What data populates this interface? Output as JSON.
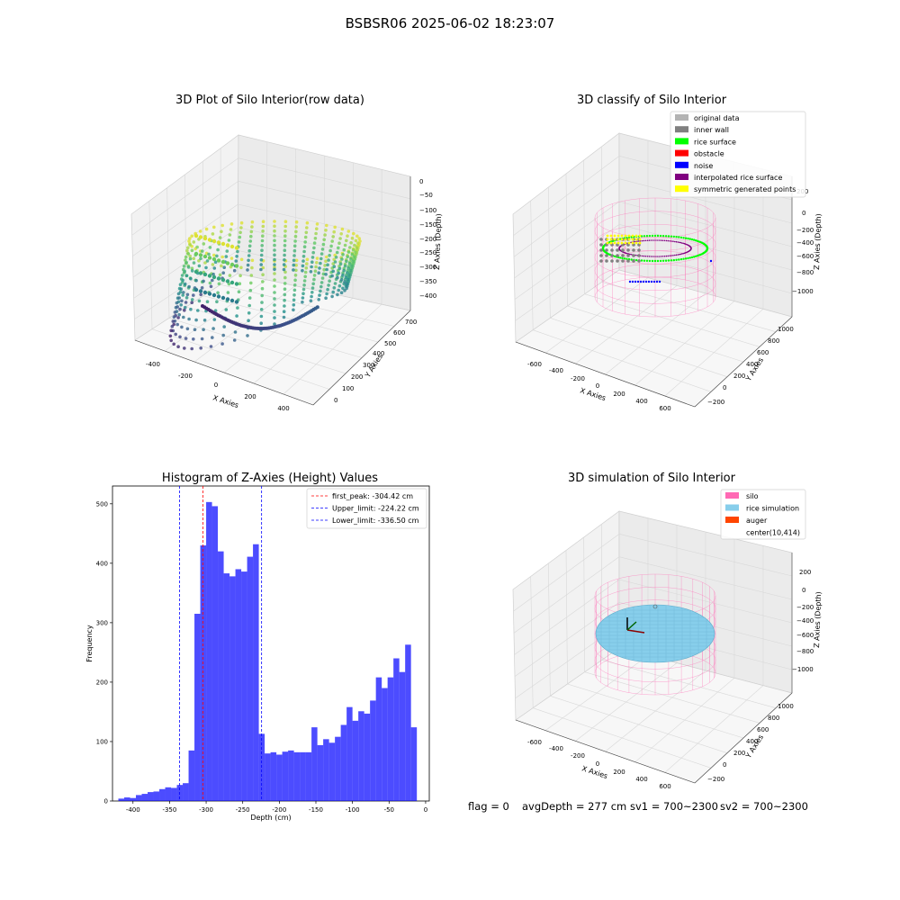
{
  "figure": {
    "suptitle": "BSBSR06 2025-06-02 18:23:07"
  },
  "info_bar": {
    "flag": "flag = 0",
    "avg_depth": "avgDepth = 277 cm",
    "sv1": "sv1 = 700~2300",
    "sv2": "sv2 = 700~2300"
  },
  "chart_data": [
    {
      "type": "scatter",
      "title": "3D Plot of Silo Interior(row data)",
      "xlabel": "X Axies",
      "ylabel": "Y Axies",
      "zlabel": "Z Axies (Depth)",
      "x_ticks": [
        "-400",
        "-200",
        "0",
        "200",
        "400"
      ],
      "y_ticks": [
        "0",
        "100",
        "200",
        "300",
        "400",
        "500",
        "600",
        "700"
      ],
      "z_ticks": [
        "0",
        "−50",
        "−100",
        "−150",
        "−200",
        "−250",
        "−300",
        "−350",
        "−400"
      ],
      "xlim": [
        -480,
        480
      ],
      "ylim": [
        -50,
        750
      ],
      "zlim": [
        -430,
        10
      ],
      "colormap": "viridis"
    },
    {
      "type": "scatter",
      "title": "3D classify of Silo Interior",
      "xlabel": "X Axies",
      "ylabel": "Y Axies",
      "zlabel": "Z Axies (Depth)",
      "x_ticks": [
        "-600",
        "-400",
        "-200",
        "0",
        "200",
        "400",
        "600"
      ],
      "y_ticks": [
        "−200",
        "0",
        "200",
        "400",
        "600",
        "800",
        "1000"
      ],
      "z_ticks": [
        "200",
        "0",
        "−200",
        "−400",
        "−600",
        "−800",
        "−1000"
      ],
      "legend_position": "top-right",
      "legend": [
        {
          "label": "original data",
          "color": "#b3b3b3"
        },
        {
          "label": "inner wall",
          "color": "#808080"
        },
        {
          "label": "rice surface",
          "color": "#00ff00"
        },
        {
          "label": "obstacle",
          "color": "#ff0000"
        },
        {
          "label": "noise",
          "color": "#0000ff"
        },
        {
          "label": "interpolated rice surface",
          "color": "#800080"
        },
        {
          "label": "symmetric generated points",
          "color": "#ffff00"
        }
      ]
    },
    {
      "type": "bar",
      "title": "Histogram of Z-Axies (Height) Values",
      "xlabel": "Depth (cm)",
      "ylabel": "Frequency",
      "xlim": [
        -428,
        5
      ],
      "ylim": [
        0,
        530
      ],
      "x_ticks": [
        -400,
        -350,
        -300,
        -250,
        -200,
        -150,
        -100,
        -50,
        0
      ],
      "y_ticks": [
        0,
        100,
        200,
        300,
        400,
        500
      ],
      "bar_color": "#0000ff",
      "bin_start": -420,
      "bin_width": 8,
      "values": [
        4,
        6,
        5,
        10,
        12,
        15,
        16,
        20,
        23,
        22,
        27,
        30,
        85,
        315,
        430,
        503,
        496,
        420,
        383,
        378,
        390,
        386,
        411,
        432,
        113,
        80,
        82,
        78,
        83,
        85,
        82,
        82,
        82,
        124,
        94,
        104,
        98,
        108,
        128,
        158,
        135,
        151,
        147,
        169,
        208,
        190,
        208,
        240,
        217,
        263,
        124
      ],
      "vlines": [
        {
          "label": "first_peak: -304.42 cm",
          "x": -304.42,
          "color": "#ff0000"
        },
        {
          "label": "Upper_limit: -224.22 cm",
          "x": -224.22,
          "color": "#0000ff"
        },
        {
          "label": "Lower_limit: -336.50 cm",
          "x": -336.5,
          "color": "#0000ff"
        }
      ],
      "legend_position": "top-right"
    },
    {
      "type": "scatter",
      "title": "3D simulation of Silo Interior",
      "xlabel": "X Axies",
      "ylabel": "Y Axies",
      "zlabel": "Z Axies (Depth)",
      "x_ticks": [
        "-600",
        "-400",
        "-200",
        "0",
        "200",
        "400",
        "600"
      ],
      "y_ticks": [
        "−200",
        "0",
        "200",
        "400",
        "600",
        "800",
        "1000"
      ],
      "z_ticks": [
        "200",
        "0",
        "−200",
        "−400",
        "−600",
        "−800",
        "−1000"
      ],
      "legend_position": "top-right",
      "legend": [
        {
          "label": "silo",
          "color": "#ff69b4"
        },
        {
          "label": "rice simulation",
          "color": "#87ceeb"
        },
        {
          "label": "auger",
          "color": "#ff4500"
        },
        {
          "label": "center(10,414)",
          "color": ""
        }
      ]
    }
  ]
}
